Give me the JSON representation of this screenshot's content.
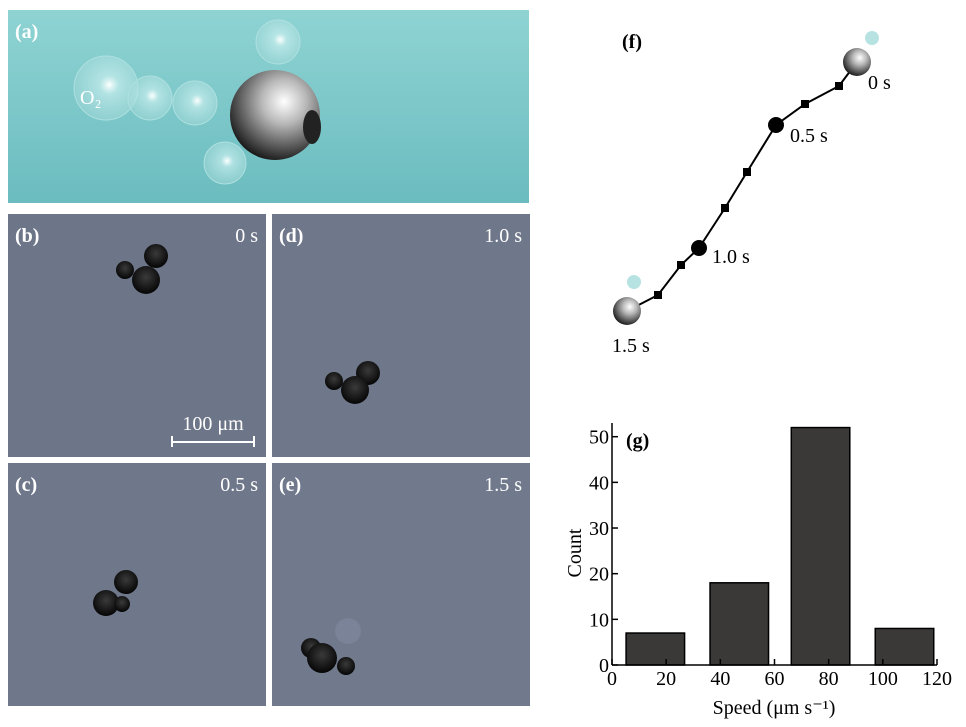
{
  "panels": {
    "a": {
      "label": "(a)",
      "gas": "O₂"
    },
    "b": {
      "label": "(b)",
      "time": "0 s",
      "scale_bar": "100 μm"
    },
    "c": {
      "label": "(c)",
      "time": "0.5 s"
    },
    "d": {
      "label": "(d)",
      "time": "1.0 s"
    },
    "e": {
      "label": "(e)",
      "time": "1.5 s"
    },
    "f": {
      "label": "(f)",
      "times": [
        "0 s",
        "0.5 s",
        "1.0 s",
        "1.5 s"
      ]
    }
  },
  "chart_data": {
    "type": "bar",
    "panel_label": "(g)",
    "x_label": "Speed (μm s⁻¹)",
    "y_label": "Count",
    "x": [
      16,
      47,
      77,
      108
    ],
    "values": [
      7,
      18,
      52,
      8
    ],
    "color": "#3b3838",
    "xlim": [
      0,
      120
    ],
    "ylim": [
      0,
      53
    ],
    "xticks": [
      0,
      20,
      40,
      60,
      80,
      100,
      120
    ],
    "yticks": [
      0,
      10,
      20,
      30,
      40,
      50
    ]
  }
}
